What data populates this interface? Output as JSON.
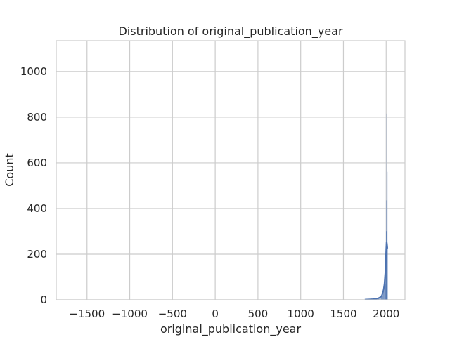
{
  "chart_data": {
    "type": "histogram",
    "title": "Distribution of original_publication_year",
    "xlabel": "original_publication_year",
    "ylabel": "Count",
    "xlim": [
      -1860,
      2220
    ],
    "ylim": [
      0,
      1135
    ],
    "grid": true,
    "x_ticks": [
      -1500,
      -1000,
      -500,
      0,
      500,
      1000,
      1500,
      2000
    ],
    "x_tick_labels": [
      "−1500",
      "−1000",
      "−500",
      "0",
      "500",
      "1000",
      "1500",
      "2000"
    ],
    "y_ticks": [
      0,
      200,
      400,
      600,
      800,
      1000
    ],
    "y_tick_labels": [
      "0",
      "200",
      "400",
      "600",
      "800",
      "1000"
    ],
    "bar_color": "#4c72b0",
    "bars": [
      {
        "x0": 1800,
        "x1": 1840,
        "count": 2
      },
      {
        "x0": 1840,
        "x1": 1880,
        "count": 4
      },
      {
        "x0": 1880,
        "x1": 1910,
        "count": 6
      },
      {
        "x0": 1910,
        "x1": 1930,
        "count": 8
      },
      {
        "x0": 1930,
        "x1": 1945,
        "count": 12
      },
      {
        "x0": 1945,
        "x1": 1960,
        "count": 18
      },
      {
        "x0": 1960,
        "x1": 1970,
        "count": 28
      },
      {
        "x0": 1970,
        "x1": 1980,
        "count": 40
      },
      {
        "x0": 1980,
        "x1": 1990,
        "count": 70
      },
      {
        "x0": 1990,
        "x1": 1996,
        "count": 120
      },
      {
        "x0": 1996,
        "x1": 2000,
        "count": 200
      },
      {
        "x0": 2000,
        "x1": 2003,
        "count": 300
      },
      {
        "x0": 2003,
        "x1": 2006,
        "count": 435
      },
      {
        "x0": 2006,
        "x1": 2009,
        "count": 815
      },
      {
        "x0": 2009,
        "x1": 2012,
        "count": 560
      },
      {
        "x0": 2012,
        "x1": 2017,
        "count": 240
      }
    ],
    "kde": {
      "x": [
        1750,
        1800,
        1850,
        1880,
        1900,
        1920,
        1940,
        1950,
        1960,
        1970,
        1980,
        1990,
        1995,
        2000,
        2005,
        2010,
        2015
      ],
      "y": [
        1,
        2,
        3,
        4,
        6,
        9,
        14,
        20,
        30,
        45,
        70,
        120,
        170,
        220,
        255,
        245,
        225
      ]
    }
  }
}
